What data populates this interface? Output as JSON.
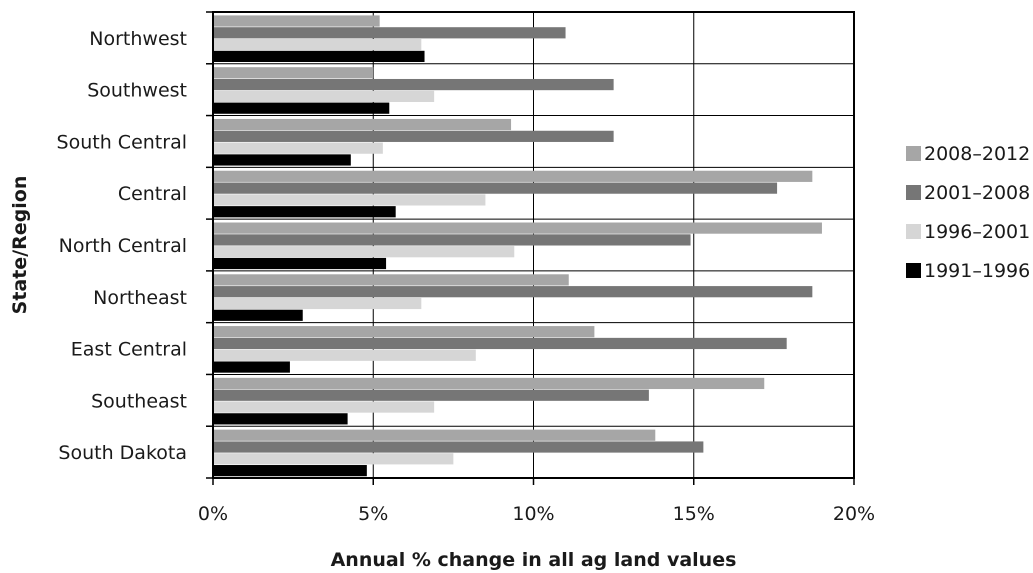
{
  "chart_data": {
    "type": "bar",
    "orientation": "horizontal",
    "xlabel": "Annual % change in all ag land values",
    "ylabel": "State/Region",
    "xlim": [
      0,
      20
    ],
    "xticks": [
      0,
      5,
      10,
      15,
      20
    ],
    "xtick_labels": [
      "0%",
      "5%",
      "10%",
      "15%",
      "20%"
    ],
    "grid": "vertical",
    "legend_position": "right",
    "categories": [
      "Northwest",
      "Southwest",
      "South Central",
      "Central",
      "North Central",
      "Northeast",
      "East Central",
      "Southeast",
      "South Dakota"
    ],
    "series": [
      {
        "name": "2008–2012",
        "color": "#a6a6a6",
        "values": [
          5.2,
          5.0,
          9.3,
          18.7,
          19.0,
          11.1,
          11.9,
          17.2,
          13.8
        ]
      },
      {
        "name": "2001–2008",
        "color": "#767676",
        "values": [
          11.0,
          12.5,
          12.5,
          17.6,
          14.9,
          18.7,
          17.9,
          13.6,
          15.3
        ]
      },
      {
        "name": "1996–2001",
        "color": "#d6d6d6",
        "values": [
          6.5,
          6.9,
          5.3,
          8.5,
          9.4,
          6.5,
          8.2,
          6.9,
          7.5
        ]
      },
      {
        "name": "1991–1996",
        "color": "#000000",
        "values": [
          6.6,
          5.5,
          4.3,
          5.7,
          5.4,
          2.8,
          2.4,
          4.2,
          4.8
        ]
      }
    ]
  }
}
